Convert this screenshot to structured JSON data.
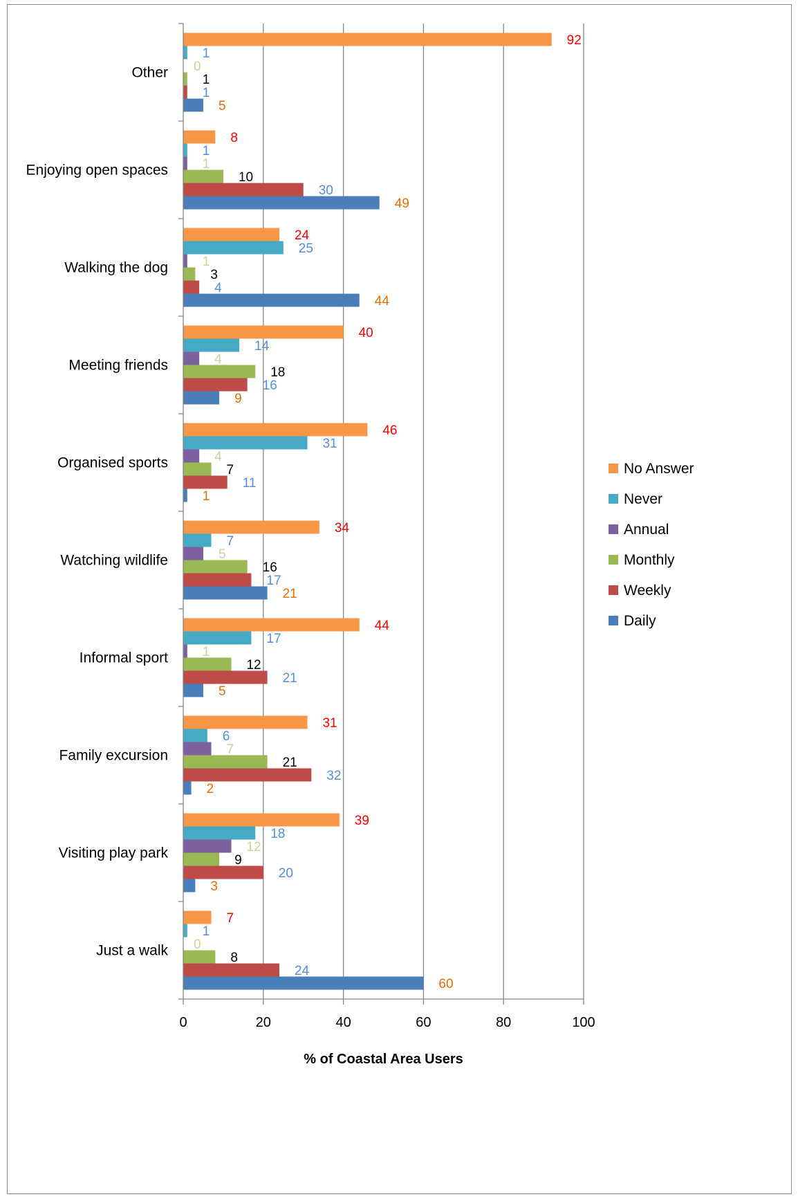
{
  "chart_data": {
    "type": "bar",
    "orientation": "horizontal",
    "xlabel": "% of  Coastal Area Users",
    "xlim": [
      0,
      100
    ],
    "xticks": [
      0,
      20,
      40,
      60,
      80,
      100
    ],
    "grid": true,
    "legend_position": "right",
    "categories": [
      "Just a walk",
      "Visiting play park",
      "Family excursion",
      "Informal sport",
      "Watching wildlife",
      "Organised sports",
      "Meeting friends",
      "Walking the dog",
      "Enjoying open spaces",
      "Other"
    ],
    "series": [
      {
        "name": "Daily",
        "color": "#4a7ebb",
        "label_color": "#e46c0a",
        "values": [
          60,
          3,
          2,
          5,
          21,
          1,
          9,
          44,
          49,
          5
        ]
      },
      {
        "name": "Weekly",
        "color": "#be4b48",
        "label_color": "#558ed5",
        "values": [
          24,
          20,
          32,
          21,
          17,
          11,
          16,
          4,
          30,
          1
        ]
      },
      {
        "name": "Monthly",
        "color": "#98b954",
        "label_color": "#000000",
        "values": [
          8,
          9,
          21,
          12,
          16,
          7,
          18,
          3,
          10,
          1
        ]
      },
      {
        "name": "Annual",
        "color": "#7d60a0",
        "label_color": "#c3d69b",
        "values": [
          0,
          12,
          7,
          1,
          5,
          4,
          4,
          1,
          1,
          0
        ]
      },
      {
        "name": "Never",
        "color": "#46aac5",
        "label_color": "#558ed5",
        "values": [
          1,
          18,
          6,
          17,
          7,
          31,
          14,
          25,
          1,
          1
        ]
      },
      {
        "name": "No Answer",
        "color": "#f79646",
        "label_color": "#ff0000",
        "values": [
          7,
          39,
          31,
          44,
          34,
          46,
          40,
          24,
          8,
          92
        ]
      }
    ]
  }
}
